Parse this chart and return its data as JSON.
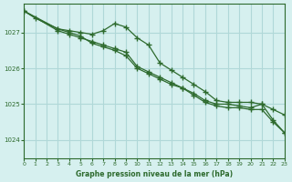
{
  "bg_color": "#d6f0ef",
  "grid_color": "#b0d8d8",
  "line_color": "#2d6a2d",
  "line_colors": [
    "#2d6a2d",
    "#2d6a2d",
    "#2d6a2d"
  ],
  "title": "Graphe pression niveau de la mer (hPa)",
  "title_color": "#2d6a2d",
  "ylabel_ticks": [
    1024,
    1025,
    1026,
    1027
  ],
  "xlim": [
    0,
    23
  ],
  "ylim": [
    1023.5,
    1027.8
  ],
  "series1": {
    "x": [
      0,
      1,
      3,
      4,
      5,
      6,
      7,
      8,
      9,
      10,
      11,
      12,
      13,
      14,
      15,
      16,
      17,
      18,
      19,
      20,
      21,
      22,
      23
    ],
    "y": [
      1027.6,
      1027.4,
      1027.1,
      1027.0,
      1026.9,
      1026.7,
      1026.6,
      1026.5,
      1026.35,
      1026.0,
      1025.85,
      1025.7,
      1025.55,
      1025.45,
      1025.3,
      1025.1,
      1025.0,
      1025.0,
      1024.95,
      1024.9,
      1025.0,
      1024.55,
      1024.2
    ]
  },
  "series2": {
    "x": [
      0,
      3,
      4,
      5,
      6,
      7,
      8,
      9,
      10,
      11,
      12,
      13,
      14,
      15,
      16,
      17,
      18,
      19,
      20,
      21,
      22,
      23
    ],
    "y": [
      1027.6,
      1027.1,
      1027.05,
      1027.0,
      1026.95,
      1027.05,
      1027.25,
      1027.15,
      1026.85,
      1026.65,
      1026.15,
      1025.95,
      1025.75,
      1025.55,
      1025.35,
      1025.1,
      1025.05,
      1025.05,
      1025.05,
      1025.0,
      1024.85,
      1024.7
    ]
  },
  "series3": {
    "x": [
      0,
      3,
      4,
      5,
      6,
      7,
      8,
      9,
      10,
      11,
      12,
      13,
      14,
      15,
      16,
      17,
      18,
      19,
      20,
      21,
      22,
      23
    ],
    "y": [
      1027.6,
      1027.05,
      1026.95,
      1026.85,
      1026.75,
      1026.65,
      1026.55,
      1026.45,
      1026.05,
      1025.9,
      1025.75,
      1025.6,
      1025.45,
      1025.25,
      1025.05,
      1024.95,
      1024.9,
      1024.9,
      1024.85,
      1024.85,
      1024.5,
      1024.2
    ]
  }
}
